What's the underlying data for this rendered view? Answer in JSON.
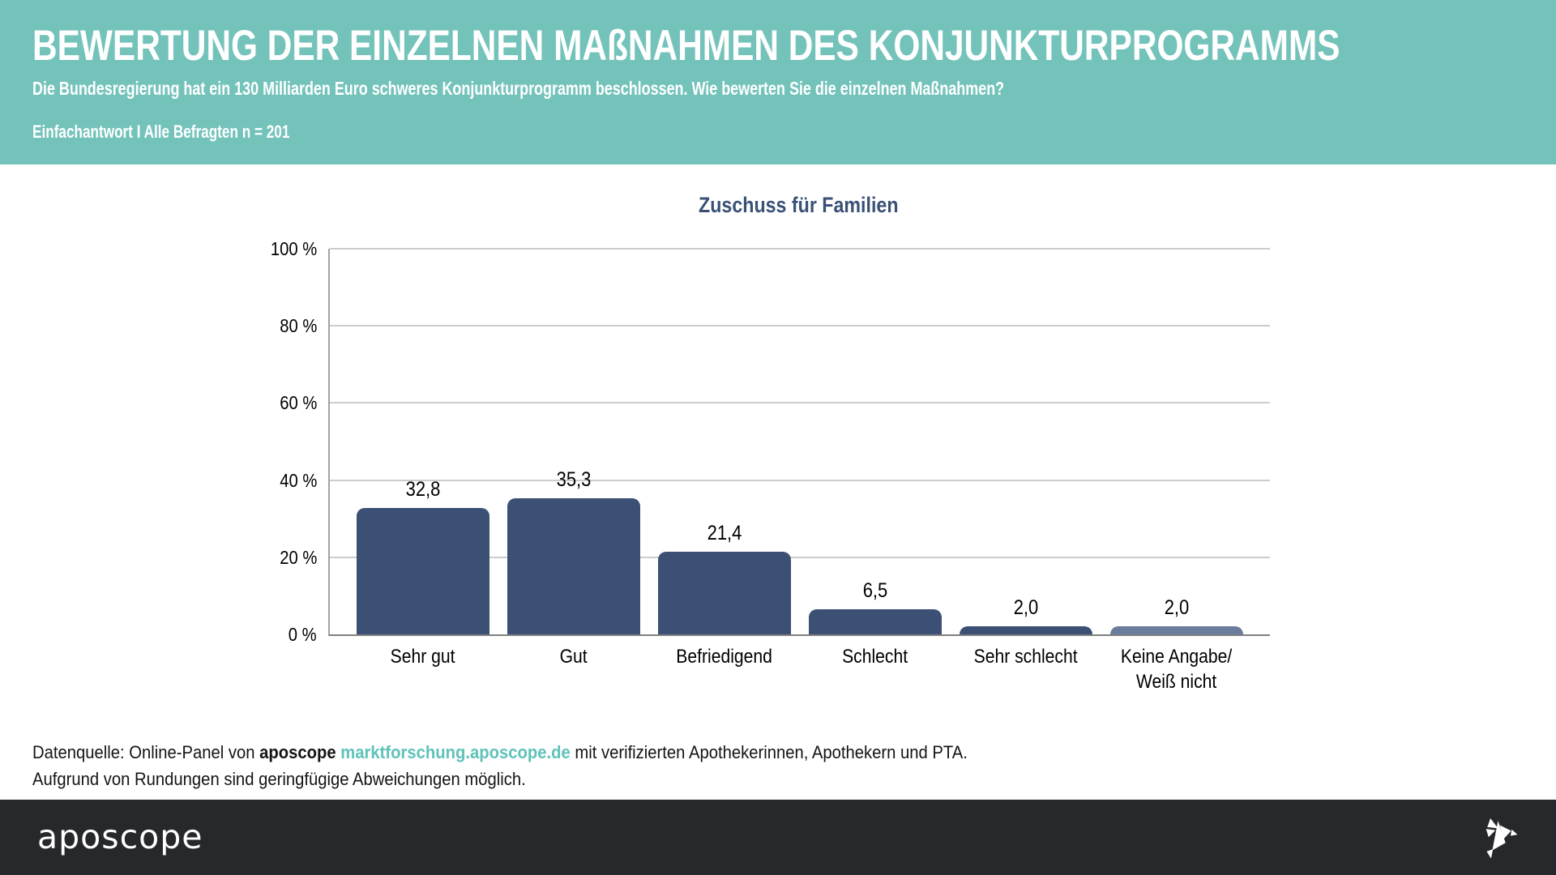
{
  "header": {
    "title": "BEWERTUNG DER EINZELNEN MAßNAHMEN DES KONJUNKTURPROGRAMMS",
    "subtitle": "Die Bundesregierung hat ein 130 Milliarden Euro schweres Konjunkturprogramm beschlossen. Wie bewerten Sie die einzelnen Maßnahmen?",
    "sample_note": "Einfachantwort I Alle Befragten n = 201",
    "background_color": "#74C3BB",
    "text_color": "#FFFFFF"
  },
  "chart_data": {
    "type": "bar",
    "title": "Zuschuss für Familien",
    "title_color": "#3A5175",
    "categories": [
      "Sehr gut",
      "Gut",
      "Befriedigend",
      "Schlecht",
      "Sehr schlecht",
      "Keine Angabe/\nWeiß nicht"
    ],
    "values": [
      32.8,
      35.3,
      21.4,
      6.5,
      2.0,
      2.0
    ],
    "value_labels": [
      "32,8",
      "35,3",
      "21,4",
      "6,5",
      "2,0",
      "2,0"
    ],
    "bar_colors": [
      "#3C5075",
      "#3C5075",
      "#3C5075",
      "#3C5075",
      "#3C5075",
      "#6B7D9C"
    ],
    "xlabel": "",
    "ylabel": "",
    "ylim": [
      0,
      100
    ],
    "yticks": [
      0,
      20,
      40,
      60,
      80,
      100
    ],
    "ytick_labels": [
      "0 %",
      "20 %",
      "40 %",
      "60 %",
      "80 %",
      "100 %"
    ],
    "grid": true,
    "legend": "none"
  },
  "footnote": {
    "line1_prefix": "Datenquelle: Online-Panel von ",
    "line1_brand": "aposcope",
    "line1_space": " ",
    "line1_link": "marktforschung.aposcope.de",
    "line1_suffix": " mit verifizierten Apothekerinnen, Apothekern und PTA.",
    "line2": "Aufgrund von Rundungen sind geringfügige Abweichungen möglich.",
    "link_color": "#5FC2B8"
  },
  "footer": {
    "wordmark": "aposcope",
    "logo_icon": "origami-bird-icon",
    "background_color": "#26282C"
  }
}
